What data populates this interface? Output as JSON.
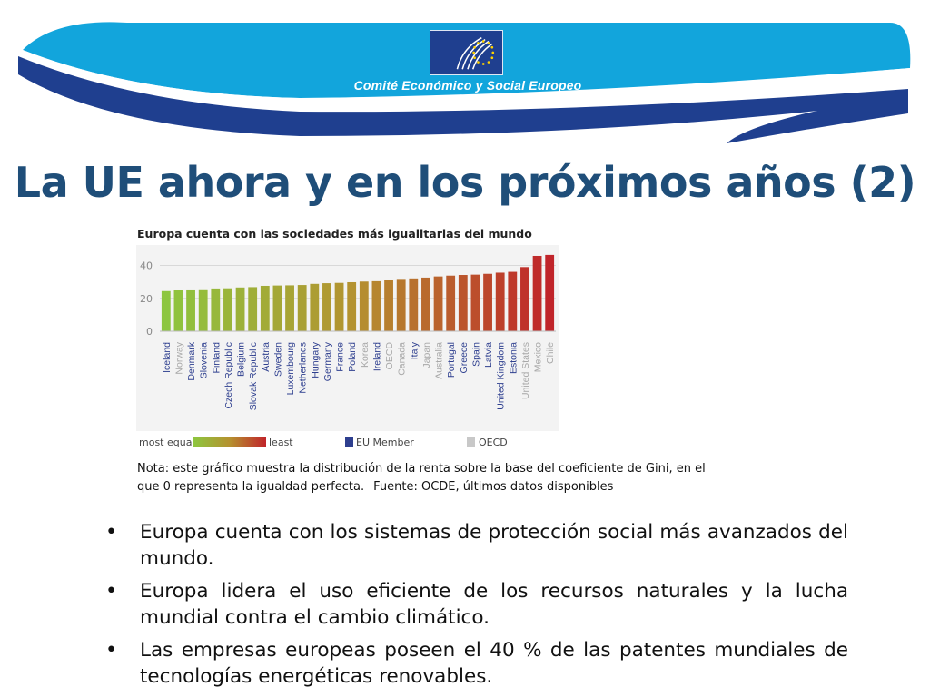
{
  "header": {
    "organization": "Comité Económico y Social Europeo",
    "colors": {
      "light_blue": "#12a5dc",
      "dark_blue": "#1f3f8f"
    },
    "logo_icon": "eesc-logo-icon"
  },
  "slide": {
    "title": "La UE ahora y en los próximos años (2)"
  },
  "chart_data": {
    "type": "bar",
    "title": "Europa cuenta con las sociedades más igualitarias del mundo",
    "xlabel": "",
    "ylabel": "",
    "ylim": [
      0,
      48
    ],
    "yticks": [
      "0",
      "20",
      "40"
    ],
    "grid": true,
    "categories": [
      "Iceland",
      "Norway",
      "Denmark",
      "Slovenia",
      "Finland",
      "Czech Republic",
      "Belgium",
      "Slovak Republic",
      "Austria",
      "Sweden",
      "Luxembourg",
      "Netherlands",
      "Hungary",
      "Germany",
      "France",
      "Poland",
      "Korea",
      "Ireland",
      "OECD",
      "Canada",
      "Italy",
      "Japan",
      "Australia",
      "Portugal",
      "Greece",
      "Spain",
      "Latvia",
      "United Kingdom",
      "Estonia",
      "United States",
      "Mexico",
      "Chile"
    ],
    "values": [
      24.4,
      25.2,
      25.4,
      25.5,
      26.0,
      26.1,
      26.6,
      26.8,
      27.6,
      27.8,
      27.9,
      28.1,
      28.8,
      29.2,
      29.4,
      29.8,
      30.2,
      30.4,
      31.3,
      31.8,
      32.1,
      32.6,
      33.3,
      33.8,
      34.2,
      34.4,
      34.9,
      35.6,
      36.1,
      39.0,
      45.8,
      46.4
    ],
    "label_status": [
      "eu",
      "oecd",
      "eu",
      "eu",
      "eu",
      "eu",
      "eu",
      "eu",
      "eu",
      "eu",
      "eu",
      "eu",
      "eu",
      "eu",
      "eu",
      "eu",
      "oecd",
      "eu",
      "oecd",
      "oecd",
      "eu",
      "oecd",
      "oecd",
      "eu",
      "eu",
      "eu",
      "eu",
      "eu",
      "eu",
      "oecd",
      "oecd",
      "oecd"
    ],
    "legend": {
      "gradient_start_label": "most equal",
      "gradient_end_label": "least",
      "eu_label": "EU Member",
      "oecd_label": "OECD",
      "eu_color": "#2e3f8f",
      "oecd_color": "#c8c8c8",
      "placement": "bottom"
    },
    "colors": {
      "equal": "#8dc63f",
      "mid": "#b5912f",
      "least": "#c0242a",
      "eu_text": "#2e3f8f",
      "oecd_text": "#a8a8a8"
    }
  },
  "note": {
    "line1": "Nota: este gráfico muestra la distribución de la renta sobre la base del coeficiente de Gini, en el",
    "line2": "que 0 representa la igualdad perfecta.",
    "source": "Fuente: OCDE, últimos datos disponibles"
  },
  "bullets": [
    "Europa cuenta con los sistemas de protección social más avanzados del mundo.",
    "Europa lidera el uso eficiente de los recursos naturales y la lucha mundial contra el cambio climático.",
    "Las empresas europeas poseen el 40 % de las patentes mundiales de tecnologías energéticas renovables."
  ]
}
